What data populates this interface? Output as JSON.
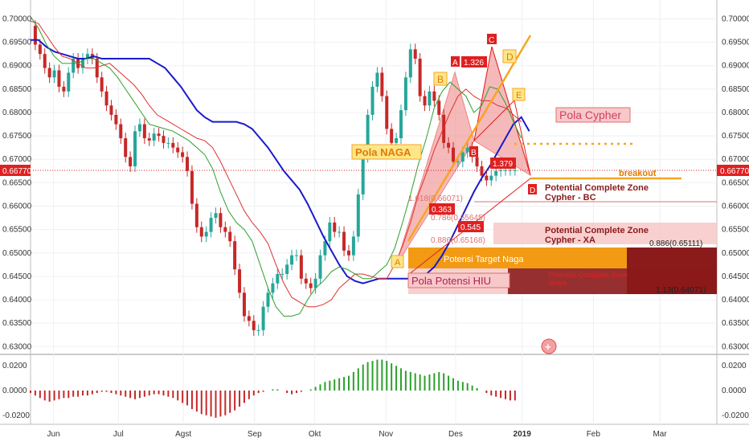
{
  "chart_data": {
    "type": "line",
    "instrument_panel": "candlestick with moving averages and harmonic pattern annotations",
    "y_axis": {
      "ticks": [
        "0.70000",
        "0.69500",
        "0.69000",
        "0.68500",
        "0.68000",
        "0.67500",
        "0.67000",
        "0.66500",
        "0.66000",
        "0.65500",
        "0.65000",
        "0.64500",
        "0.64000",
        "0.63500",
        "0.63000"
      ],
      "ylim": [
        0.6285,
        0.703
      ],
      "current_price_label": "0.66770",
      "current_price": 0.6677
    },
    "x_axis": {
      "ticks": [
        "Jun",
        "Jul",
        "Agst",
        "Sep",
        "Okt",
        "Nov",
        "Des",
        "2019",
        "Feb",
        "Mar"
      ],
      "tick_days": [
        29,
        111,
        193,
        283,
        359,
        449,
        537,
        621,
        711,
        795
      ]
    },
    "series": [
      {
        "role": "blue-ma",
        "color": "#1a1acc",
        "x": [
          0,
          10,
          20,
          30,
          40,
          50,
          60,
          70,
          80,
          90,
          100,
          110,
          120,
          130,
          140,
          150,
          160,
          170,
          180,
          190,
          200,
          210,
          220,
          230,
          240,
          250,
          260,
          270,
          280,
          290,
          300,
          310,
          320,
          330,
          340,
          350,
          360,
          370,
          380,
          390,
          400,
          410,
          420,
          430,
          440,
          450,
          460,
          470,
          480,
          490,
          500,
          510,
          520,
          530,
          540,
          550,
          560,
          570,
          580,
          590,
          600,
          610,
          620,
          630
        ],
        "y": [
          0.6955,
          0.6955,
          0.694,
          0.693,
          0.6925,
          0.692,
          0.6915,
          0.6915,
          0.692,
          0.6915,
          0.6915,
          0.6915,
          0.6915,
          0.6915,
          0.6915,
          0.6915,
          0.6905,
          0.6895,
          0.6875,
          0.6855,
          0.683,
          0.6805,
          0.679,
          0.678,
          0.678,
          0.678,
          0.678,
          0.6775,
          0.6765,
          0.6745,
          0.6725,
          0.67,
          0.6675,
          0.6655,
          0.6635,
          0.6605,
          0.657,
          0.6535,
          0.6505,
          0.6475,
          0.645,
          0.644,
          0.6435,
          0.644,
          0.6445,
          0.6445,
          0.6445,
          0.6445,
          0.6445,
          0.645,
          0.6455,
          0.647,
          0.6495,
          0.6525,
          0.656,
          0.6595,
          0.663,
          0.666,
          0.6685,
          0.6715,
          0.6745,
          0.6775,
          0.679,
          0.676
        ]
      },
      {
        "role": "red-ma",
        "color": "#e03030",
        "x": [
          0,
          10,
          20,
          30,
          40,
          50,
          60,
          70,
          80,
          90,
          100,
          110,
          120,
          130,
          140,
          150,
          160,
          170,
          180,
          190,
          200,
          210,
          220,
          230,
          240,
          250,
          260,
          270,
          280,
          290,
          300,
          310,
          320,
          330,
          340,
          350,
          360,
          370,
          380,
          390,
          400,
          410,
          420,
          430,
          440,
          450,
          460,
          470,
          480,
          490,
          500,
          510,
          520,
          530,
          540,
          550,
          560,
          570,
          580,
          590,
          600,
          610,
          620
        ],
        "y": [
          0.6995,
          0.699,
          0.6965,
          0.694,
          0.692,
          0.6915,
          0.6905,
          0.6895,
          0.6895,
          0.69,
          0.6905,
          0.689,
          0.6875,
          0.686,
          0.684,
          0.6815,
          0.6795,
          0.6785,
          0.6775,
          0.6765,
          0.6755,
          0.6745,
          0.674,
          0.6725,
          0.6695,
          0.666,
          0.6625,
          0.659,
          0.6565,
          0.6545,
          0.652,
          0.6475,
          0.6435,
          0.6405,
          0.6395,
          0.6385,
          0.6385,
          0.639,
          0.64,
          0.6425,
          0.644,
          0.6455,
          0.6455,
          0.645,
          0.6445,
          0.6445,
          0.6475,
          0.6515,
          0.6565,
          0.6625,
          0.667,
          0.672,
          0.676,
          0.68,
          0.6835,
          0.685,
          0.6835,
          0.6825,
          0.6825,
          0.6815,
          0.681,
          0.6795,
          0.678
        ]
      },
      {
        "role": "green-ma",
        "color": "#2ca02c",
        "x": [
          0,
          10,
          20,
          30,
          40,
          50,
          60,
          70,
          80,
          90,
          100,
          110,
          120,
          130,
          140,
          150,
          160,
          170,
          180,
          190,
          200,
          210,
          220,
          230,
          240,
          250,
          260,
          270,
          280,
          290,
          300,
          310,
          320,
          330,
          340,
          350,
          360,
          370,
          380,
          390,
          400,
          410,
          420,
          430,
          440,
          450,
          460,
          470,
          480,
          490,
          500,
          510,
          520,
          530,
          540,
          550,
          560,
          570,
          580,
          590,
          600,
          610,
          620
        ],
        "y": [
          0.7005,
          0.698,
          0.6945,
          0.692,
          0.6905,
          0.6905,
          0.6905,
          0.6915,
          0.6915,
          0.6905,
          0.6895,
          0.6875,
          0.685,
          0.6825,
          0.68,
          0.6775,
          0.677,
          0.6765,
          0.676,
          0.675,
          0.674,
          0.6725,
          0.671,
          0.668,
          0.663,
          0.659,
          0.6565,
          0.655,
          0.6525,
          0.6475,
          0.6425,
          0.6385,
          0.6365,
          0.6365,
          0.637,
          0.64,
          0.6425,
          0.644,
          0.646,
          0.647,
          0.6465,
          0.6455,
          0.6445,
          0.6445,
          0.646,
          0.6475,
          0.651,
          0.6565,
          0.6625,
          0.669,
          0.6745,
          0.681,
          0.6845,
          0.6865,
          0.685,
          0.6835,
          0.68,
          0.6815,
          0.6855,
          0.685,
          0.682,
          0.678,
          0.6745
        ]
      }
    ],
    "price_path": {
      "x": [
        0,
        6,
        12,
        18,
        24,
        30,
        36,
        42,
        48,
        54,
        60,
        66,
        72,
        78,
        84,
        90,
        96,
        102,
        108,
        114,
        120,
        126,
        132,
        138,
        144,
        150,
        156,
        162,
        168,
        174,
        180,
        186,
        192,
        198,
        204,
        210,
        216,
        222,
        228,
        234,
        240,
        246,
        252,
        258,
        264,
        270,
        276,
        282,
        288,
        294,
        300,
        306,
        312,
        318,
        324,
        330,
        336,
        342,
        348,
        354,
        360,
        366,
        372,
        378,
        384,
        390,
        396,
        402,
        408,
        414,
        420,
        426,
        432,
        438,
        444,
        450,
        456,
        462,
        468,
        474,
        480,
        486,
        492,
        498,
        504,
        510,
        516,
        522,
        528,
        534,
        540,
        546,
        552,
        558,
        564,
        570,
        576,
        582,
        588,
        594,
        600,
        606,
        612
      ],
      "y": [
        0.6985,
        0.6945,
        0.6925,
        0.6895,
        0.6875,
        0.689,
        0.6855,
        0.6845,
        0.6885,
        0.6915,
        0.6895,
        0.6915,
        0.6925,
        0.6915,
        0.6875,
        0.6845,
        0.6815,
        0.6795,
        0.6775,
        0.6745,
        0.6705,
        0.6685,
        0.676,
        0.6775,
        0.6745,
        0.674,
        0.6755,
        0.675,
        0.6735,
        0.6735,
        0.6725,
        0.6715,
        0.6705,
        0.6675,
        0.6605,
        0.6555,
        0.6535,
        0.6545,
        0.6575,
        0.6585,
        0.6555,
        0.6545,
        0.6525,
        0.6465,
        0.6415,
        0.6365,
        0.6355,
        0.6335,
        0.6335,
        0.6385,
        0.6415,
        0.6435,
        0.6455,
        0.6455,
        0.6475,
        0.6495,
        0.6495,
        0.6445,
        0.6435,
        0.6425,
        0.6445,
        0.6495,
        0.6525,
        0.6565,
        0.6545,
        0.6545,
        0.6505,
        0.6495,
        0.6535,
        0.6625,
        0.6705,
        0.6795,
        0.6855,
        0.6885,
        0.6835,
        0.6765,
        0.6735,
        0.6745,
        0.6805,
        0.6875,
        0.6935,
        0.6915,
        0.6835,
        0.6815,
        0.6845,
        0.6825,
        0.6795,
        0.6735,
        0.6725,
        0.6695,
        0.6695,
        0.6715,
        0.6725,
        0.6705,
        0.6685,
        0.6665,
        0.6655,
        0.6665,
        0.6675,
        0.6677,
        0.6677,
        0.6677,
        0.6677
      ]
    },
    "oscillator": {
      "ticks": [
        "0.0200",
        "0.0000",
        "-0.0200"
      ],
      "ylim": [
        -0.026,
        0.026
      ],
      "x": [
        0,
        6,
        12,
        18,
        24,
        30,
        36,
        42,
        48,
        54,
        60,
        66,
        72,
        78,
        84,
        90,
        96,
        102,
        108,
        114,
        120,
        126,
        132,
        138,
        144,
        150,
        156,
        162,
        168,
        174,
        180,
        186,
        192,
        198,
        204,
        210,
        216,
        222,
        228,
        234,
        240,
        246,
        252,
        258,
        264,
        270,
        276,
        282,
        288,
        294,
        300,
        306,
        312,
        318,
        324,
        330,
        336,
        342,
        348,
        354,
        360,
        366,
        372,
        378,
        384,
        390,
        396,
        402,
        408,
        414,
        420,
        426,
        432,
        438,
        444,
        450,
        456,
        462,
        468,
        474,
        480,
        486,
        492,
        498,
        504,
        510,
        516,
        522,
        528,
        534,
        540,
        546,
        552,
        558,
        564,
        570,
        576,
        582,
        588,
        594,
        600,
        606,
        612
      ],
      "values": [
        -0.002,
        -0.004,
        -0.006,
        -0.008,
        -0.009,
        -0.008,
        -0.007,
        -0.006,
        -0.006,
        -0.005,
        -0.005,
        -0.004,
        -0.004,
        -0.003,
        -0.002,
        -0.001,
        -0.001,
        -0.002,
        -0.003,
        -0.004,
        -0.005,
        -0.006,
        -0.007,
        -0.006,
        -0.005,
        -0.004,
        -0.003,
        -0.003,
        -0.004,
        -0.005,
        -0.006,
        -0.008,
        -0.01,
        -0.012,
        -0.015,
        -0.017,
        -0.019,
        -0.02,
        -0.021,
        -0.022,
        -0.021,
        -0.02,
        -0.018,
        -0.016,
        -0.013,
        -0.01,
        -0.007,
        -0.004,
        -0.002,
        -0.001,
        0.0,
        0.001,
        0.001,
        0.0,
        -0.002,
        -0.003,
        -0.002,
        -0.001,
        0.0,
        0.001,
        0.003,
        0.005,
        0.007,
        0.008,
        0.009,
        0.01,
        0.011,
        0.012,
        0.015,
        0.018,
        0.021,
        0.023,
        0.024,
        0.025,
        0.025,
        0.024,
        0.022,
        0.02,
        0.018,
        0.016,
        0.015,
        0.014,
        0.013,
        0.012,
        0.013,
        0.014,
        0.015,
        0.014,
        0.012,
        0.01,
        0.008,
        0.007,
        0.006,
        0.004,
        0.002,
        0.0,
        -0.002,
        -0.004,
        -0.005,
        -0.006,
        -0.007,
        -0.008,
        -0.008
      ]
    }
  },
  "annotations": {
    "pola_naga": "Pola NAGA",
    "pola_cypher": "Pola Cypher",
    "pola_potensi_hiu": "Pola Potensi HIU",
    "potensi_target_naga": "Potensi Target Naga",
    "breakout": "breakout",
    "pcz_bc_line1": "Potential Complete Zone",
    "pcz_bc_line2": "Cypher - BC",
    "pcz_xa_line1": "Potential Complete Zone",
    "pcz_xa_line2": "Cypher - XA",
    "pcz_hiu_line1": "Potential Complete Zone",
    "pcz_hiu_line2": "Shark",
    "fib_1618": "1.618(0.66071)",
    "fib_0786": "0.786(0.65645)",
    "fib_0886": "0.886(0.65168)",
    "fib_0886_b": "0.886(0.65111)",
    "fib_113": "1.13(0.64071)",
    "ratio_1326": "1.326",
    "ratio_1379": "1.379",
    "ratio_0363": "0.363",
    "ratio_0545": "0.545",
    "pt_a": "A",
    "pt_b": "B",
    "pt_c": "C",
    "pt_d": "D",
    "pt_e": "E",
    "colors": {
      "red": "#e02020",
      "orange": "#f5a623",
      "blue": "#1a1acc",
      "dark_red": "#8b1a1a",
      "pink": "#f8c8c8"
    }
  }
}
